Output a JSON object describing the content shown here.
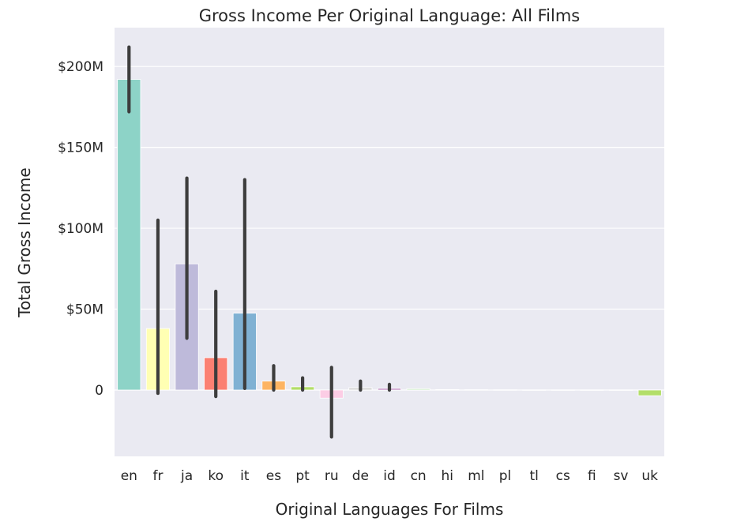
{
  "chart_data": {
    "type": "bar",
    "title": "Gross Income Per Original Language: All Films",
    "xlabel": "Original Languages For Films",
    "ylabel": "Total Gross Income",
    "ylim": [
      -41000000,
      224000000
    ],
    "yticks": [
      0,
      50000000,
      100000000,
      150000000,
      200000000
    ],
    "ytick_labels": [
      "0",
      "$50M",
      "$100M",
      "$150M",
      "$200M"
    ],
    "grid": true,
    "background": "#eaeaf2",
    "categories": [
      "en",
      "fr",
      "ja",
      "ko",
      "it",
      "es",
      "pt",
      "ru",
      "de",
      "id",
      "cn",
      "hi",
      "ml",
      "pl",
      "tl",
      "cs",
      "fi",
      "sv",
      "uk"
    ],
    "values": [
      192000000,
      38000000,
      78000000,
      20000000,
      47500000,
      5500000,
      2000000,
      -5000000,
      1500000,
      1000000,
      800000,
      300000,
      200000,
      150000,
      100000,
      100000,
      100000,
      100000,
      -3500000
    ],
    "error_low": [
      172000000,
      -2000000,
      32000000,
      -4000000,
      1000000,
      0,
      0,
      -29000000,
      0,
      0,
      800000,
      300000,
      200000,
      150000,
      100000,
      100000,
      100000,
      100000,
      -3500000
    ],
    "error_high": [
      212000000,
      105000000,
      131000000,
      61000000,
      130000000,
      15000000,
      7500000,
      14000000,
      5500000,
      3500000,
      800000,
      300000,
      200000,
      150000,
      100000,
      100000,
      100000,
      100000,
      -3500000
    ],
    "colors": [
      "#8dd3c7",
      "#ffffb3",
      "#bebada",
      "#fb8072",
      "#80b1d3",
      "#fdb462",
      "#b3de69",
      "#fccde5",
      "#d9d9d9",
      "#bc80bd",
      "#ccebc5",
      "#ffed6f",
      "#8dd3c7",
      "#ffffb3",
      "#bebada",
      "#fb8072",
      "#80b1d3",
      "#fdb462",
      "#b3de69"
    ]
  }
}
